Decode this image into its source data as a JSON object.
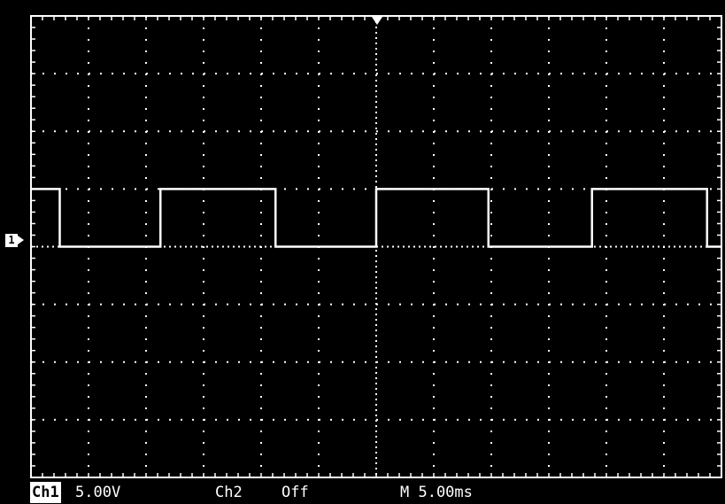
{
  "status_bar": {
    "ch1_label": "Ch1",
    "ch1_scale": "5.00V",
    "ch2_label": "Ch2",
    "ch2_state": "Off",
    "timebase": "M 5.00ms"
  },
  "channel_marker": "1",
  "display": {
    "divisions_x": 12,
    "divisions_y": 8,
    "trace_color": "#ffffff",
    "grid_color": "#ffffff",
    "background": "#000000"
  },
  "waveform": {
    "type": "square",
    "levels_div": [
      0,
      1
    ],
    "transitions_div": [
      0.5,
      2.25,
      4.25,
      6.0,
      7.95,
      9.75,
      11.75
    ]
  },
  "icons": [
    "trigger-position-icon",
    "channel-1-ground-marker-icon"
  ]
}
